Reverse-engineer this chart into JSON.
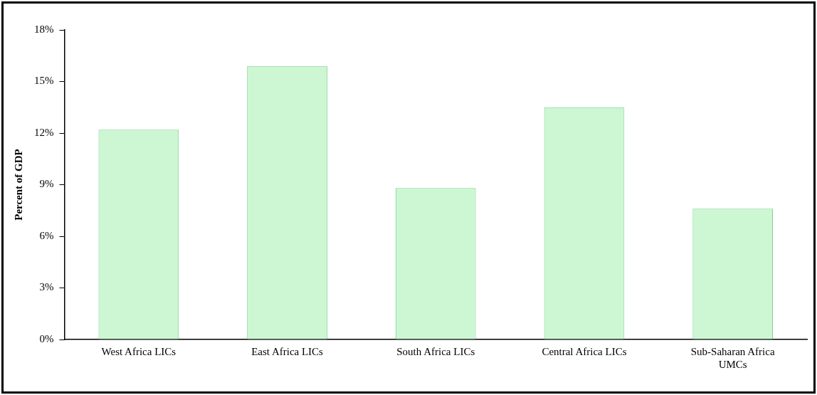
{
  "chart_data": {
    "type": "bar",
    "ylabel": "Percent of GDP",
    "categories": [
      "West Africa LICs",
      "East Africa LICs",
      "South Africa LICs",
      "Central Africa LICs",
      "Sub-Saharan Africa UMCs"
    ],
    "values": [
      12.2,
      15.9,
      8.8,
      13.5,
      7.6
    ],
    "color": "#ccf7d2",
    "ylim": [
      0,
      18
    ],
    "yticks": [
      {
        "value": 0,
        "label": "0%"
      },
      {
        "value": 3,
        "label": "3%"
      },
      {
        "value": 6,
        "label": "6%"
      },
      {
        "value": 9,
        "label": "9%"
      },
      {
        "value": 12,
        "label": "12%"
      },
      {
        "value": 15,
        "label": "15%"
      },
      {
        "value": 18,
        "label": "18%"
      }
    ],
    "grid": false,
    "legend": false
  }
}
